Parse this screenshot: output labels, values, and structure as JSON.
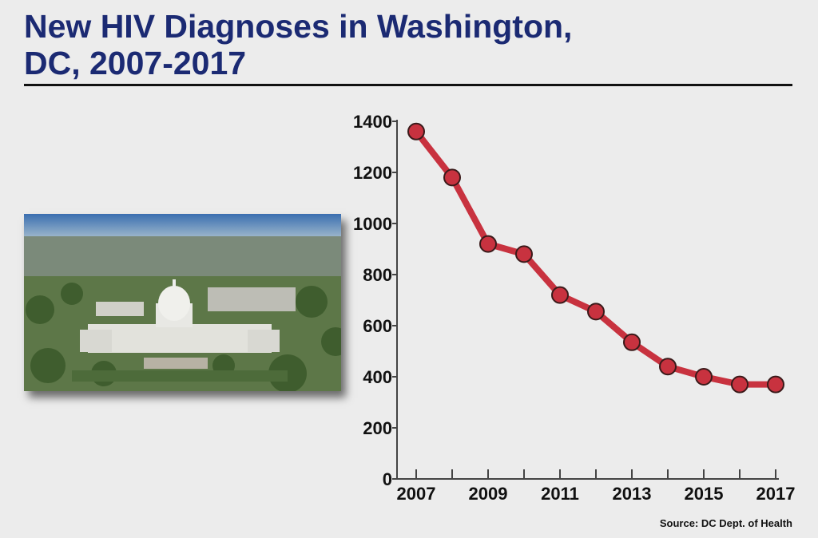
{
  "title": "New HIV Diagnoses in Washington, DC, 2007-2017",
  "source": "Source: DC Dept. of Health",
  "photo": {
    "subject": "aerial-view-us-capitol"
  },
  "chart_data": {
    "type": "line",
    "title": "New HIV Diagnoses in Washington, DC, 2007-2017",
    "xlabel": "",
    "ylabel": "",
    "x": [
      2007,
      2008,
      2009,
      2010,
      2011,
      2012,
      2013,
      2014,
      2015,
      2016,
      2017
    ],
    "series": [
      {
        "values": [
          1360,
          1180,
          920,
          880,
          720,
          655,
          535,
          440,
          400,
          370,
          370
        ],
        "color": "#c8323f"
      }
    ],
    "xticks": [
      2007,
      2009,
      2011,
      2013,
      2015,
      2017
    ],
    "yticks": [
      0,
      200,
      400,
      600,
      800,
      1000,
      1200,
      1400
    ],
    "xlim": [
      2007,
      2017
    ],
    "ylim": [
      0,
      1400
    ],
    "grid": false,
    "markers": true
  }
}
